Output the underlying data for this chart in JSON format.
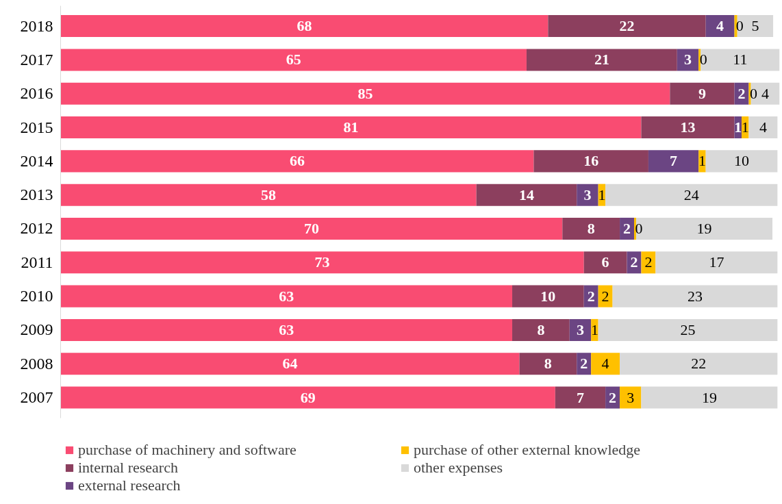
{
  "chart_data": {
    "type": "bar",
    "orientation": "horizontal",
    "stacked": true,
    "data_labels": true,
    "legend": "bottom",
    "grid": false,
    "categories": [
      "2018",
      "2017",
      "2016",
      "2015",
      "2014",
      "2013",
      "2012",
      "2011",
      "2010",
      "2009",
      "2008",
      "2007"
    ],
    "series": [
      {
        "name": "purchase of machinery and software",
        "color": "#f94c72",
        "values": [
          68,
          65,
          85,
          81,
          66,
          58,
          70,
          73,
          63,
          63,
          64,
          69
        ]
      },
      {
        "name": "internal research",
        "color": "#8c3f5e",
        "values": [
          22,
          21,
          9,
          13,
          16,
          14,
          8,
          6,
          10,
          8,
          8,
          7
        ]
      },
      {
        "name": "external research",
        "color": "#6b4583",
        "values": [
          4,
          3,
          2,
          1,
          7,
          3,
          2,
          2,
          2,
          3,
          2,
          2
        ]
      },
      {
        "name": "purchase of other external knowledge",
        "color": "#ffc000",
        "values": [
          0.4,
          0.3,
          0.3,
          1,
          1,
          1,
          0.3,
          2,
          2,
          1,
          4,
          3
        ],
        "value_labels": [
          "0",
          "0",
          "0",
          "1",
          "1",
          "1",
          "0",
          "2",
          "2",
          "1",
          "4",
          "3"
        ]
      },
      {
        "name": "other expenses",
        "color": "#d9d9d9",
        "values": [
          5,
          11,
          4,
          4,
          10,
          24,
          19,
          17,
          23,
          25,
          22,
          19
        ]
      }
    ]
  }
}
